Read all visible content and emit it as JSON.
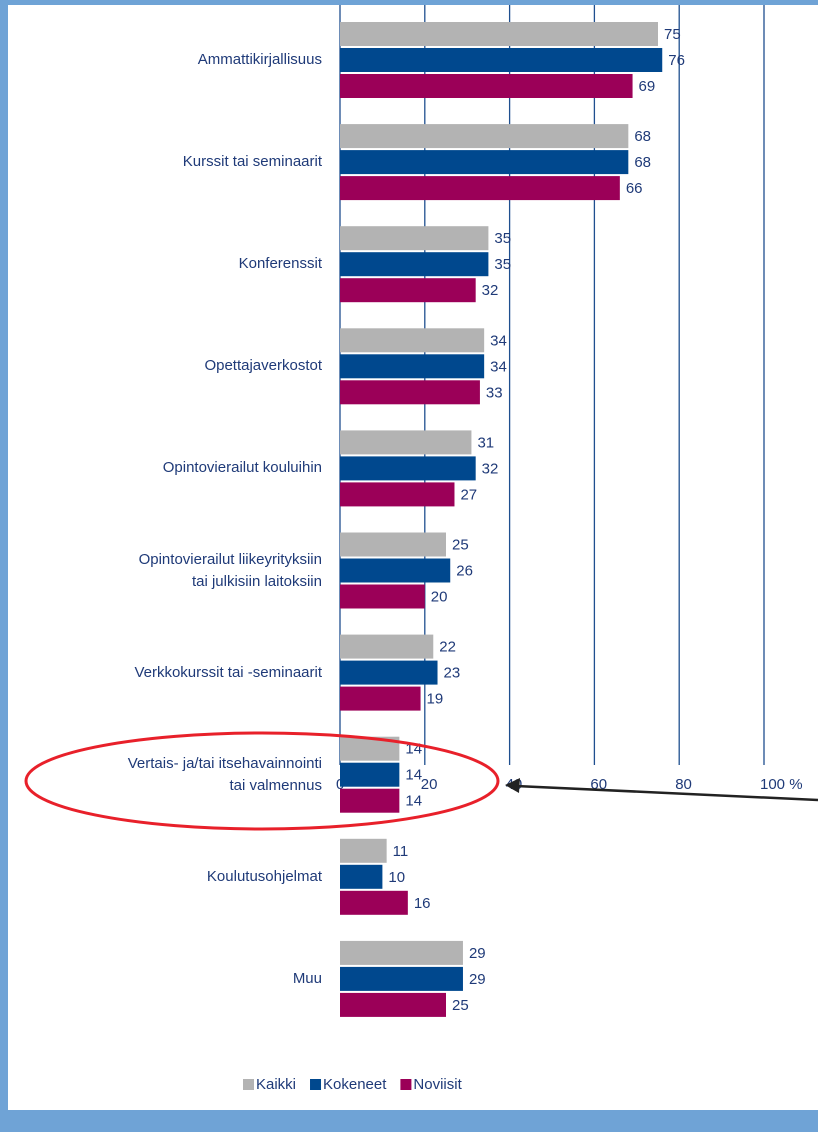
{
  "chart_data": {
    "type": "bar",
    "orientation": "horizontal",
    "categories": [
      "Ammattikirjallisuus",
      "Kurssit tai seminaarit",
      "Konferenssit",
      "Opettajaverkostot",
      "Opintovierailut kouluihin",
      "Opintovierailut liikeyrityksiin\ntai julkisiin laitoksiin",
      "Verkkokurssit tai -seminaarit",
      "Vertais- ja/tai itsehavainnointi\ntai valmennus",
      "Koulutusohjelmat",
      "Muu"
    ],
    "series": [
      {
        "name": "Kaikki",
        "color": "#b3b3b3",
        "values": [
          75,
          68,
          35,
          34,
          31,
          25,
          22,
          14,
          11,
          29
        ]
      },
      {
        "name": "Kokeneet",
        "color": "#00488e",
        "values": [
          76,
          68,
          35,
          34,
          32,
          26,
          23,
          14,
          10,
          29
        ]
      },
      {
        "name": "Noviisit",
        "color": "#9b0058",
        "values": [
          69,
          66,
          32,
          33,
          27,
          20,
          19,
          14,
          16,
          25
        ]
      }
    ],
    "xlim": [
      0,
      110
    ],
    "xticks": [
      0,
      20,
      40,
      60,
      80,
      {
        "value": 100,
        "label": "100 %"
      }
    ],
    "grid": true,
    "legend": "bottom-left"
  }
}
